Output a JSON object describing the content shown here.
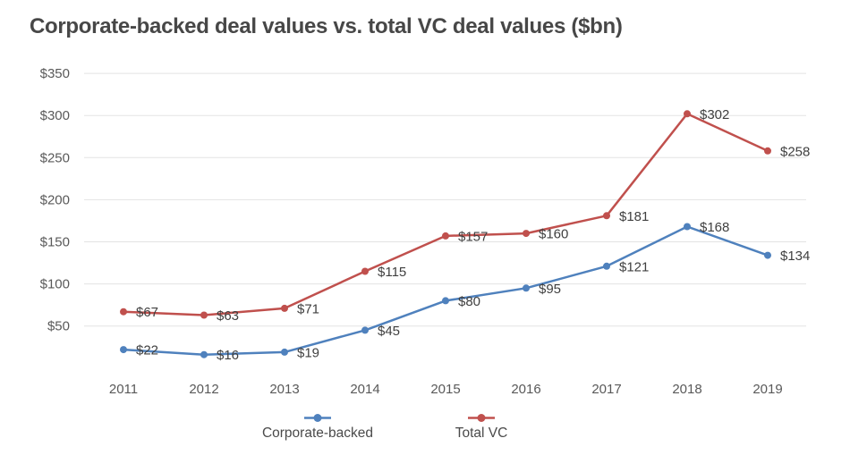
{
  "title": "Corporate-backed deal values vs. total VC deal values ($bn)",
  "chart_data": {
    "type": "line",
    "x": [
      "2011",
      "2012",
      "2013",
      "2014",
      "2015",
      "2016",
      "2017",
      "2018",
      "2019"
    ],
    "series": [
      {
        "name": "Corporate-backed",
        "color": "#4f81bd",
        "values": [
          22,
          16,
          19,
          45,
          80,
          95,
          121,
          168,
          134
        ]
      },
      {
        "name": "Total VC",
        "color": "#c0504d",
        "values": [
          67,
          63,
          71,
          115,
          157,
          160,
          181,
          302,
          258
        ]
      }
    ],
    "title": "Corporate-backed deal values vs. total VC deal values ($bn)",
    "xlabel": "",
    "ylabel": "",
    "value_prefix": "$",
    "y_ticks": [
      50,
      100,
      150,
      200,
      250,
      300,
      350
    ],
    "ylim": [
      0,
      350
    ],
    "grid": true,
    "data_labels": true,
    "legend_position": "bottom"
  },
  "legend": {
    "items": [
      {
        "label": "Corporate-backed"
      },
      {
        "label": "Total VC"
      }
    ]
  },
  "colors": {
    "background": "#ffffff",
    "title_text": "#474747",
    "axis_text": "#595959",
    "data_label_text": "#3f3f3f",
    "gridline": "#e3e3e3",
    "series_corporate": "#4f81bd",
    "series_total_vc": "#c0504d"
  }
}
